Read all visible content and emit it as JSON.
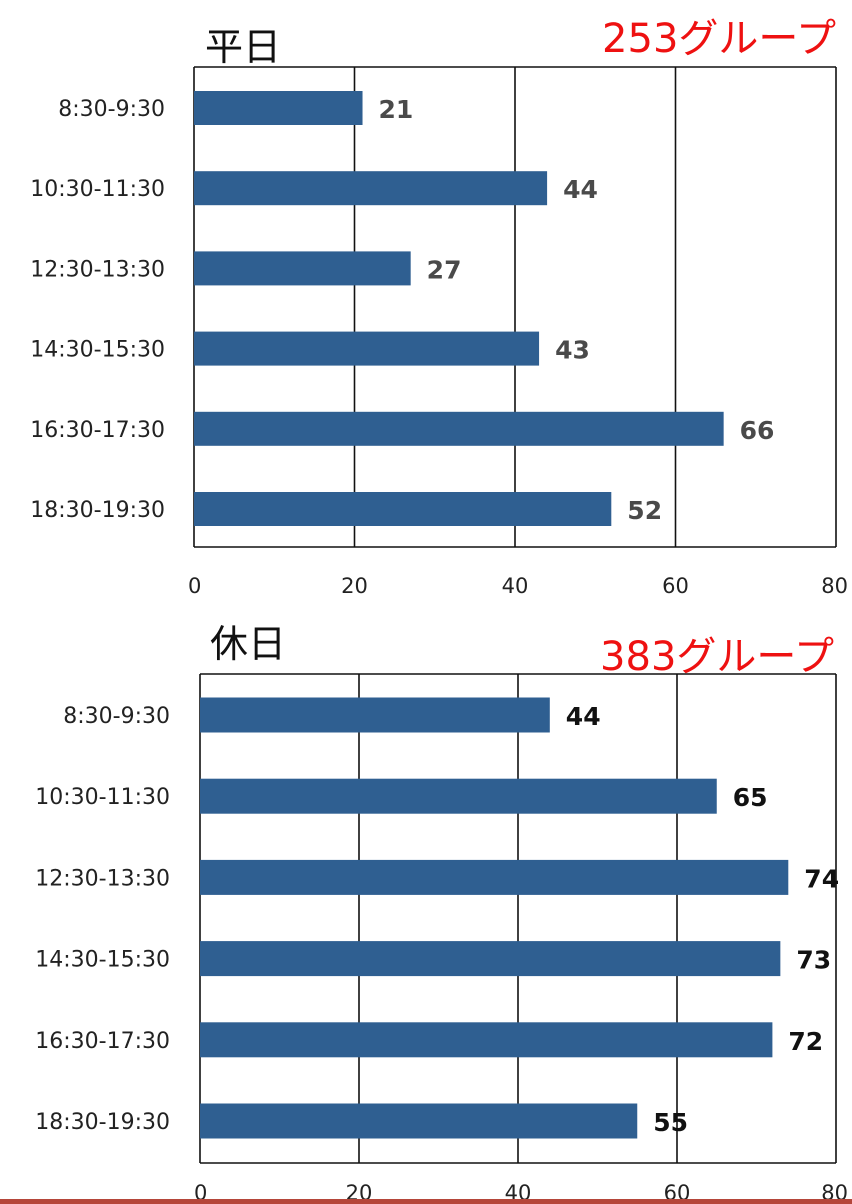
{
  "chart_data": [
    {
      "type": "bar",
      "orientation": "horizontal",
      "title": "平日",
      "group_count_label": "253グループ",
      "categories": [
        "8:30-9:30",
        "10:30-11:30",
        "12:30-13:30",
        "14:30-15:30",
        "16:30-17:30",
        "18:30-19:30"
      ],
      "values": [
        21,
        44,
        27,
        43,
        66,
        52
      ],
      "xlim": [
        0,
        80
      ],
      "xticks": [
        0,
        20,
        40,
        60,
        80
      ],
      "grid": true,
      "bar_color": "#2f5f91"
    },
    {
      "type": "bar",
      "orientation": "horizontal",
      "title": "休日",
      "group_count_label": "383グループ",
      "categories": [
        "8:30-9:30",
        "10:30-11:30",
        "12:30-13:30",
        "14:30-15:30",
        "16:30-17:30",
        "18:30-19:30"
      ],
      "values": [
        44,
        65,
        74,
        73,
        72,
        55
      ],
      "xlim": [
        0,
        80
      ],
      "xticks": [
        0,
        20,
        40,
        60,
        80
      ],
      "grid": true,
      "bar_color": "#2f5f91"
    }
  ]
}
